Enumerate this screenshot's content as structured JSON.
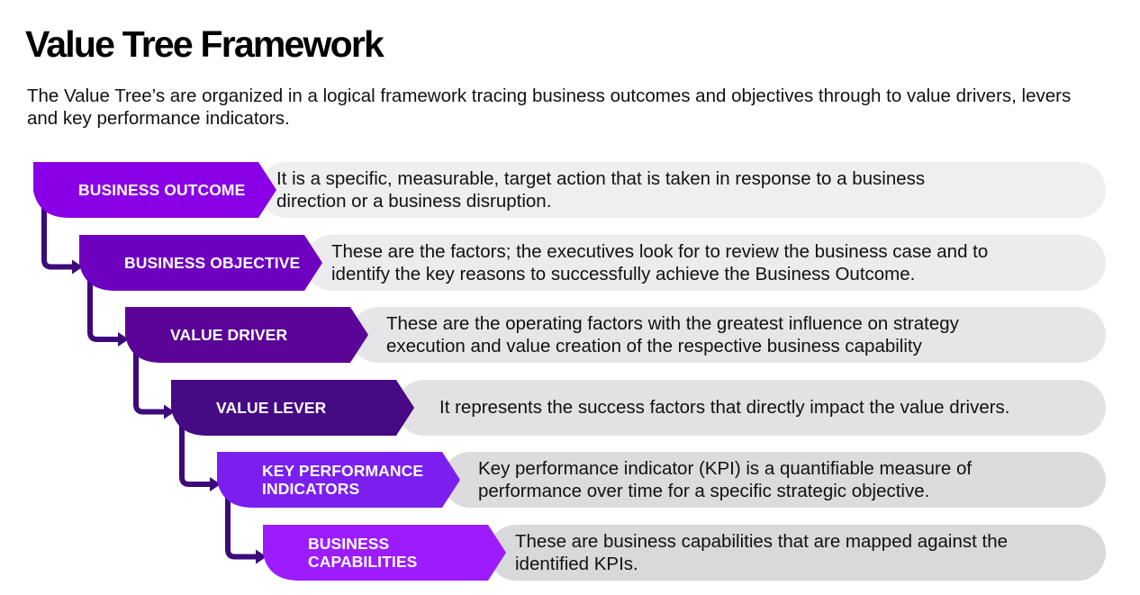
{
  "title": "Value Tree Framework",
  "subtitle": "The Value Tree’s are organized in a logical framework tracing business outcomes and objectives through to value drivers, levers and key performance indicators.",
  "levels": [
    {
      "label": "BUSINESS OUTCOME",
      "description": "It is a specific, measurable, target action that is taken in response to a business\ndirection or a business disruption.",
      "color": "#8a00e6",
      "box_color": "#efeff1"
    },
    {
      "label": "BUSINESS OBJECTIVE",
      "description": "These are the factors; the executives look for to review the business case and to\nidentify the key reasons to successfully achieve the Business Outcome.",
      "color": "#6e00c0",
      "box_color": "#ececee"
    },
    {
      "label": "VALUE DRIVER",
      "description": "These are the operating factors with the greatest influence on strategy\nexecution and value creation of the respective business capability",
      "color": "#5a0598",
      "box_color": "#e6e6e8"
    },
    {
      "label": "VALUE LEVER",
      "description": "It represents the success factors that directly impact the value drivers.",
      "color": "#460a84",
      "box_color": "#e2e2e4"
    },
    {
      "label": "KEY PERFORMANCE\nINDICATORS",
      "description": "Key performance indicator (KPI) is a quantifiable measure of\nperformance over time for a specific strategic objective.",
      "color": "#7a1ff0",
      "box_color": "#dcdcde"
    },
    {
      "label": "BUSINESS\nCAPABILITIES",
      "description": "These are business capabilities that are mapped against the\nidentified KPIs.",
      "color": "#9d1cff",
      "box_color": "#d9d9db"
    }
  ]
}
